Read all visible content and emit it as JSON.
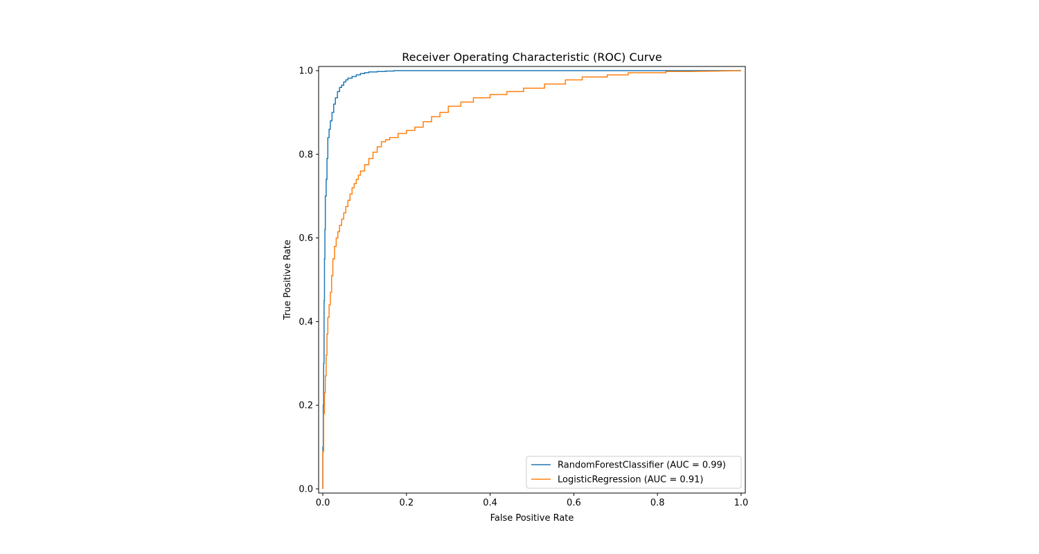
{
  "chart_data": {
    "type": "line",
    "title": "Receiver Operating Characteristic (ROC) Curve",
    "xlabel": "False Positive Rate",
    "ylabel": "True Positive Rate",
    "xlim": [
      -0.01,
      1.01
    ],
    "ylim": [
      -0.01,
      1.01
    ],
    "xticks": [
      0.0,
      0.2,
      0.4,
      0.6,
      0.8,
      1.0
    ],
    "yticks": [
      0.0,
      0.2,
      0.4,
      0.6,
      0.8,
      1.0
    ],
    "xtick_labels": [
      "0.0",
      "0.2",
      "0.4",
      "0.6",
      "0.8",
      "1.0"
    ],
    "ytick_labels": [
      "0.0",
      "0.2",
      "0.4",
      "0.6",
      "0.8",
      "1.0"
    ],
    "legend_position": "lower-right",
    "grid": false,
    "series": [
      {
        "name": "RandomForestClassifier (AUC = 0.99)",
        "color": "#1f77b4",
        "x": [
          0.0,
          0.0,
          0.001,
          0.001,
          0.002,
          0.002,
          0.003,
          0.003,
          0.004,
          0.004,
          0.005,
          0.005,
          0.006,
          0.006,
          0.008,
          0.008,
          0.01,
          0.01,
          0.012,
          0.012,
          0.015,
          0.015,
          0.018,
          0.018,
          0.022,
          0.022,
          0.026,
          0.026,
          0.03,
          0.03,
          0.035,
          0.035,
          0.04,
          0.04,
          0.045,
          0.045,
          0.05,
          0.05,
          0.055,
          0.055,
          0.06,
          0.06,
          0.07,
          0.07,
          0.08,
          0.08,
          0.09,
          0.09,
          0.1,
          0.1,
          0.11,
          0.11,
          0.13,
          0.13,
          0.15,
          0.15,
          0.17,
          0.17,
          0.2,
          1.0
        ],
        "y": [
          0.0,
          0.1,
          0.1,
          0.2,
          0.2,
          0.3,
          0.3,
          0.45,
          0.45,
          0.55,
          0.55,
          0.62,
          0.62,
          0.7,
          0.7,
          0.74,
          0.74,
          0.79,
          0.79,
          0.84,
          0.84,
          0.86,
          0.86,
          0.88,
          0.88,
          0.9,
          0.9,
          0.92,
          0.92,
          0.935,
          0.935,
          0.95,
          0.95,
          0.96,
          0.96,
          0.965,
          0.965,
          0.973,
          0.973,
          0.978,
          0.978,
          0.982,
          0.982,
          0.986,
          0.986,
          0.99,
          0.99,
          0.993,
          0.993,
          0.995,
          0.995,
          0.997,
          0.997,
          0.998,
          0.998,
          0.999,
          0.999,
          1.0,
          1.0,
          1.0
        ]
      },
      {
        "name": "LogisticRegression (AUC = 0.91)",
        "color": "#ff7f0e",
        "x": [
          0.0,
          0.0,
          0.002,
          0.002,
          0.004,
          0.004,
          0.006,
          0.006,
          0.008,
          0.008,
          0.01,
          0.01,
          0.012,
          0.012,
          0.015,
          0.015,
          0.018,
          0.018,
          0.021,
          0.021,
          0.024,
          0.024,
          0.028,
          0.028,
          0.032,
          0.032,
          0.036,
          0.036,
          0.04,
          0.04,
          0.045,
          0.045,
          0.05,
          0.05,
          0.055,
          0.055,
          0.06,
          0.06,
          0.065,
          0.065,
          0.07,
          0.07,
          0.075,
          0.075,
          0.08,
          0.08,
          0.085,
          0.085,
          0.09,
          0.09,
          0.1,
          0.1,
          0.11,
          0.11,
          0.12,
          0.12,
          0.13,
          0.13,
          0.14,
          0.14,
          0.15,
          0.15,
          0.16,
          0.16,
          0.18,
          0.18,
          0.2,
          0.2,
          0.22,
          0.22,
          0.24,
          0.24,
          0.26,
          0.26,
          0.28,
          0.28,
          0.3,
          0.3,
          0.33,
          0.33,
          0.36,
          0.36,
          0.4,
          0.4,
          0.44,
          0.44,
          0.48,
          0.48,
          0.53,
          0.53,
          0.58,
          0.58,
          0.62,
          0.62,
          0.68,
          0.68,
          0.73,
          0.73,
          0.82,
          0.82,
          0.88,
          1.0
        ],
        "y": [
          0.0,
          0.09,
          0.09,
          0.18,
          0.18,
          0.23,
          0.23,
          0.27,
          0.27,
          0.32,
          0.32,
          0.37,
          0.37,
          0.41,
          0.41,
          0.44,
          0.44,
          0.47,
          0.47,
          0.51,
          0.51,
          0.55,
          0.55,
          0.58,
          0.58,
          0.6,
          0.6,
          0.615,
          0.615,
          0.63,
          0.63,
          0.645,
          0.645,
          0.66,
          0.66,
          0.675,
          0.675,
          0.69,
          0.69,
          0.705,
          0.705,
          0.72,
          0.72,
          0.73,
          0.73,
          0.74,
          0.74,
          0.75,
          0.75,
          0.76,
          0.76,
          0.775,
          0.775,
          0.79,
          0.79,
          0.805,
          0.805,
          0.818,
          0.818,
          0.83,
          0.83,
          0.835,
          0.835,
          0.84,
          0.84,
          0.85,
          0.85,
          0.857,
          0.857,
          0.865,
          0.865,
          0.878,
          0.878,
          0.89,
          0.89,
          0.9,
          0.9,
          0.915,
          0.915,
          0.925,
          0.925,
          0.935,
          0.935,
          0.943,
          0.943,
          0.95,
          0.95,
          0.958,
          0.958,
          0.968,
          0.968,
          0.978,
          0.978,
          0.985,
          0.985,
          0.99,
          0.99,
          0.995,
          0.995,
          0.998,
          0.998,
          1.0
        ]
      }
    ]
  }
}
